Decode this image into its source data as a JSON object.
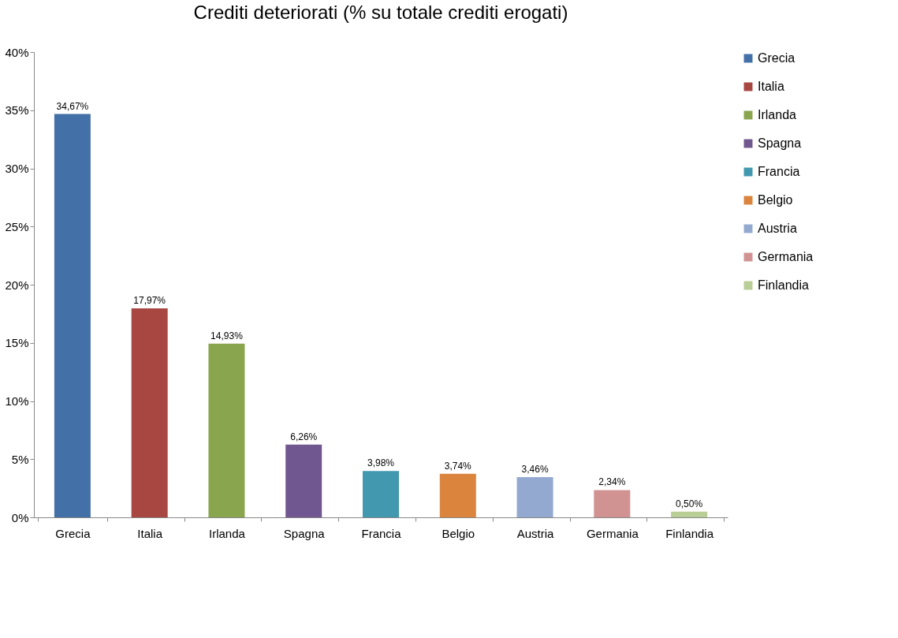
{
  "chart_data": {
    "type": "bar",
    "title": "Crediti deteriorati (% su totale crediti erogati)",
    "categories": [
      "Grecia",
      "Italia",
      "Irlanda",
      "Spagna",
      "Francia",
      "Belgio",
      "Austria",
      "Germania",
      "Finlandia"
    ],
    "series": [
      {
        "name": "Grecia",
        "color": "#4470a8",
        "values": [
          34.67,
          null,
          null,
          null,
          null,
          null,
          null,
          null,
          null
        ],
        "value_labels": [
          "34,67%",
          null,
          null,
          null,
          null,
          null,
          null,
          null,
          null
        ]
      },
      {
        "name": "Italia",
        "color": "#a84642",
        "values": [
          null,
          17.97,
          null,
          null,
          null,
          null,
          null,
          null,
          null
        ],
        "value_labels": [
          null,
          "17,97%",
          null,
          null,
          null,
          null,
          null,
          null,
          null
        ]
      },
      {
        "name": "Irlanda",
        "color": "#89a54e",
        "values": [
          null,
          null,
          14.93,
          null,
          null,
          null,
          null,
          null,
          null
        ],
        "value_labels": [
          null,
          null,
          "14,93%",
          null,
          null,
          null,
          null,
          null,
          null
        ]
      },
      {
        "name": "Spagna",
        "color": "#71578f",
        "values": [
          null,
          null,
          null,
          6.26,
          null,
          null,
          null,
          null,
          null
        ],
        "value_labels": [
          null,
          null,
          null,
          "6,26%",
          null,
          null,
          null,
          null,
          null
        ]
      },
      {
        "name": "Francia",
        "color": "#4198af",
        "values": [
          null,
          null,
          null,
          null,
          3.98,
          null,
          null,
          null,
          null
        ],
        "value_labels": [
          null,
          null,
          null,
          null,
          "3,98%",
          null,
          null,
          null,
          null
        ]
      },
      {
        "name": "Belgio",
        "color": "#db843d",
        "values": [
          null,
          null,
          null,
          null,
          null,
          3.74,
          null,
          null,
          null
        ],
        "value_labels": [
          null,
          null,
          null,
          null,
          null,
          "3,74%",
          null,
          null,
          null
        ]
      },
      {
        "name": "Austria",
        "color": "#93a9cf",
        "values": [
          null,
          null,
          null,
          null,
          null,
          null,
          3.46,
          null,
          null
        ],
        "value_labels": [
          null,
          null,
          null,
          null,
          null,
          null,
          "3,46%",
          null,
          null
        ]
      },
      {
        "name": "Germania",
        "color": "#d19392",
        "values": [
          null,
          null,
          null,
          null,
          null,
          null,
          null,
          2.34,
          null
        ],
        "value_labels": [
          null,
          null,
          null,
          null,
          null,
          null,
          null,
          "2,34%",
          null
        ]
      },
      {
        "name": "Finlandia",
        "color": "#b9cd96",
        "values": [
          null,
          null,
          null,
          null,
          null,
          null,
          null,
          null,
          0.5
        ],
        "value_labels": [
          null,
          null,
          null,
          null,
          null,
          null,
          null,
          null,
          "0,50%"
        ]
      }
    ],
    "ylim": [
      0,
      40
    ],
    "yticks": [
      {
        "value": 0,
        "label": "0%"
      },
      {
        "value": 5,
        "label": "5%"
      },
      {
        "value": 10,
        "label": "10%"
      },
      {
        "value": 15,
        "label": "15%"
      },
      {
        "value": 20,
        "label": "20%"
      },
      {
        "value": 25,
        "label": "25%"
      },
      {
        "value": 30,
        "label": "30%"
      },
      {
        "value": 35,
        "label": "35%"
      },
      {
        "value": 40,
        "label": "40%"
      }
    ],
    "legend": "right",
    "grid": false
  }
}
